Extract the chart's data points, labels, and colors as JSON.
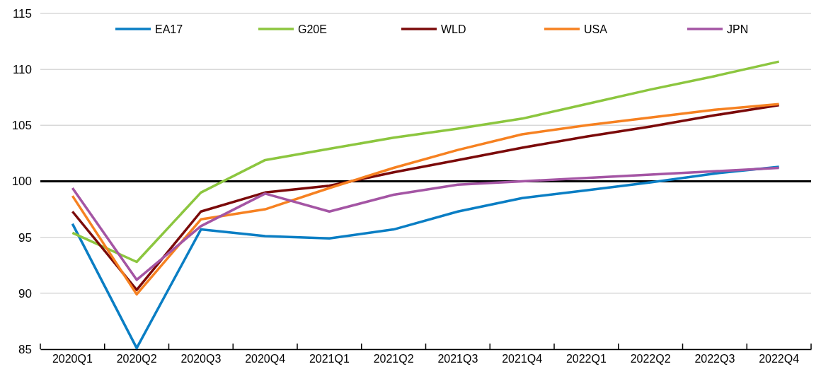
{
  "chart_data": {
    "type": "line",
    "categories": [
      "2020Q1",
      "2020Q2",
      "2020Q3",
      "2020Q4",
      "2021Q1",
      "2021Q2",
      "2021Q3",
      "2021Q4",
      "2022Q1",
      "2022Q2",
      "2022Q3",
      "2022Q4"
    ],
    "series": [
      {
        "name": "EA17",
        "color": "#0a7ec4",
        "values": [
          96.2,
          85.1,
          95.7,
          95.1,
          94.9,
          95.7,
          97.3,
          98.5,
          99.2,
          99.9,
          100.7,
          101.3
        ]
      },
      {
        "name": "G20E",
        "color": "#8cc63f",
        "values": [
          95.4,
          92.8,
          99.0,
          101.9,
          102.9,
          103.9,
          104.7,
          105.6,
          106.9,
          108.2,
          109.4,
          110.7
        ]
      },
      {
        "name": "WLD",
        "color": "#7b0a0a",
        "values": [
          97.3,
          90.3,
          97.3,
          99.0,
          99.6,
          100.8,
          101.9,
          103.0,
          104.0,
          104.9,
          105.9,
          106.8
        ]
      },
      {
        "name": "USA",
        "color": "#f68121",
        "values": [
          98.7,
          89.9,
          96.6,
          97.5,
          99.4,
          101.2,
          102.8,
          104.2,
          105.0,
          105.7,
          106.4,
          106.9
        ]
      },
      {
        "name": "JPN",
        "color": "#a455a4",
        "values": [
          99.4,
          91.2,
          96.0,
          98.9,
          97.3,
          98.8,
          99.7,
          100.0,
          100.3,
          100.6,
          100.9,
          101.2
        ]
      }
    ],
    "ylim": [
      85,
      115
    ],
    "yticks": [
      85,
      90,
      95,
      100,
      105,
      110,
      115
    ],
    "grid": "y",
    "legend": "top",
    "ref_lines": [
      {
        "axis": "y",
        "value": 100,
        "color": "#000000"
      }
    ],
    "marker": "none",
    "line_style": "solid"
  }
}
